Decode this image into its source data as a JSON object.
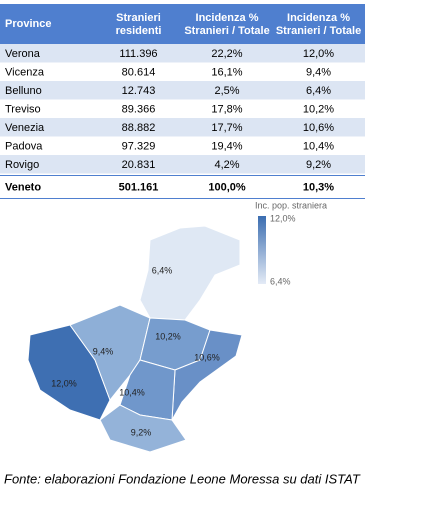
{
  "table": {
    "header": [
      "Province",
      "Stranieri residenti",
      "Incidenza % Stranieri / Totale",
      "Incidenza % Stranieri / Totale"
    ],
    "rows": [
      [
        "Verona",
        "111.396",
        "22,2%",
        "12,0%"
      ],
      [
        "Vicenza",
        "80.614",
        "16,1%",
        "9,4%"
      ],
      [
        "Belluno",
        "12.743",
        "2,5%",
        "6,4%"
      ],
      [
        "Treviso",
        "89.366",
        "17,8%",
        "10,2%"
      ],
      [
        "Venezia",
        "88.882",
        "17,7%",
        "10,6%"
      ],
      [
        "Padova",
        "97.329",
        "19,4%",
        "10,4%"
      ],
      [
        "Rovigo",
        "20.831",
        "4,2%",
        "9,2%"
      ]
    ],
    "total": [
      "Veneto",
      "501.161",
      "100,0%",
      "10,3%"
    ]
  },
  "map": {
    "legend_title": "Inc. pop. straniera",
    "legend_max": "12,0%",
    "legend_min": "6,4%",
    "max_color": "#3b6db0",
    "min_color": "#e4ebf6",
    "regions": [
      {
        "label": "12,0%",
        "color": "#3e6fb2"
      },
      {
        "label": "9,4%",
        "color": "#8eafd7"
      },
      {
        "label": "6,4%",
        "color": "#dfe8f4"
      },
      {
        "label": "10,2%",
        "color": "#779dce"
      },
      {
        "label": "10,6%",
        "color": "#6990c7"
      },
      {
        "label": "10,4%",
        "color": "#7097cb"
      },
      {
        "label": "9,2%",
        "color": "#94b3d9"
      }
    ]
  },
  "footnote": "Fonte: elaborazioni Fondazione Leone Moressa su dati ISTAT"
}
